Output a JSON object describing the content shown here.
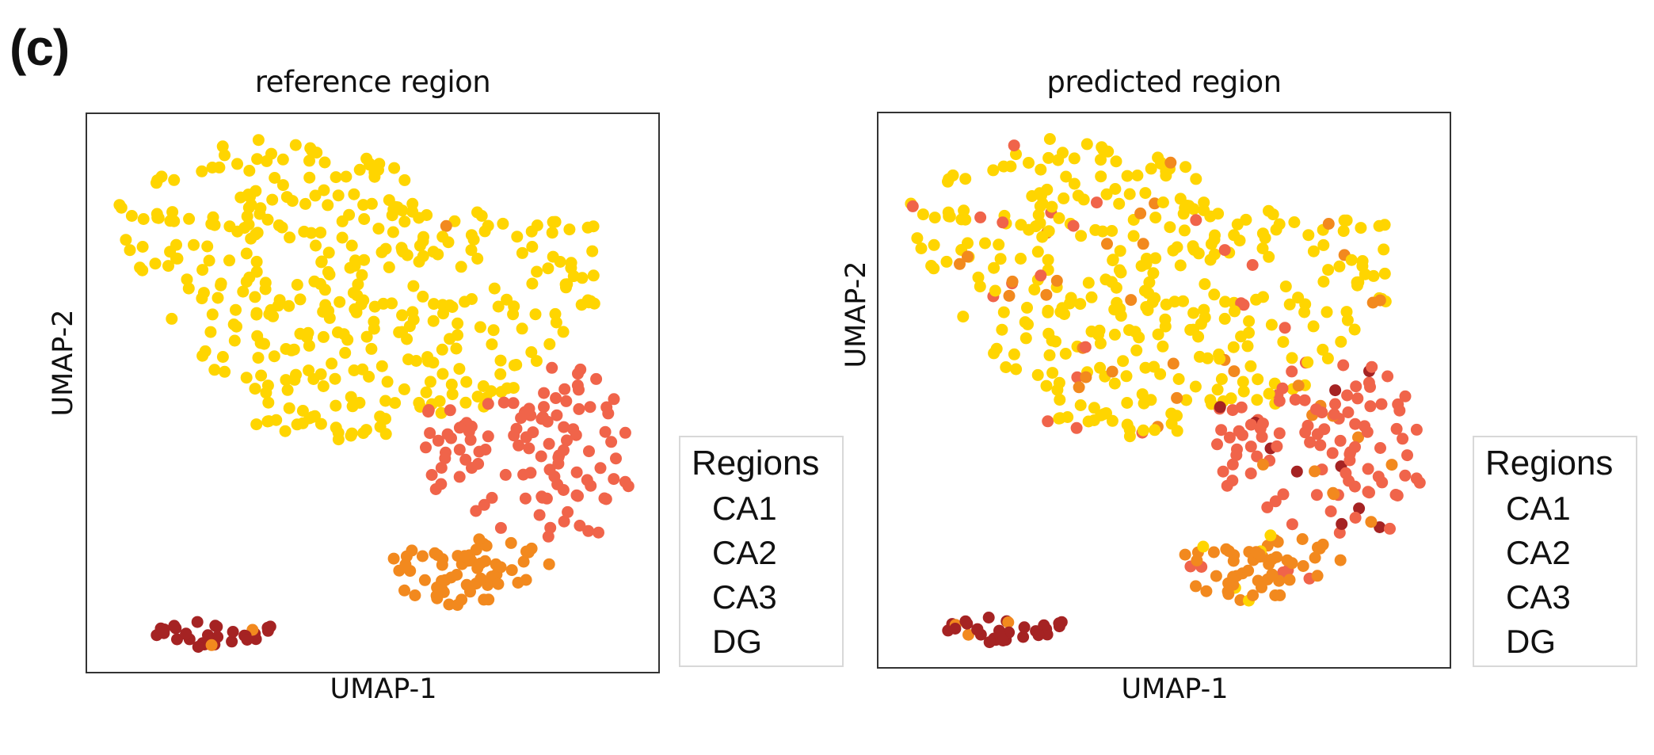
{
  "figure_label": "(c)",
  "chart_data": [
    {
      "type": "scatter",
      "title": "reference region",
      "xlabel": "UMAP-1",
      "ylabel": "UMAP-2",
      "xlim": [
        0,
        100
      ],
      "ylim": [
        0,
        100
      ],
      "grid": false,
      "ticks": false,
      "legend": {
        "title": "Regions",
        "placement": "right",
        "entries": [
          "CA1",
          "CA2",
          "CA3",
          "DG"
        ]
      },
      "colors": {
        "CA1": "#F0644A",
        "CA2": "#F2891E",
        "CA3": "#FFD500",
        "DG": "#A52323"
      },
      "clusters": [
        {
          "label": "CA3",
          "center": [
            42,
            72
          ],
          "approx_count": 700
        },
        {
          "label": "CA1",
          "center": [
            80,
            30
          ],
          "approx_count": 200
        },
        {
          "label": "CA2",
          "center": [
            66,
            17
          ],
          "approx_count": 110
        },
        {
          "label": "DG",
          "center": [
            22,
            6
          ],
          "approx_count": 60
        }
      ],
      "mislabel_rate": 0.01
    },
    {
      "type": "scatter",
      "title": "predicted region",
      "xlabel": "UMAP-1",
      "ylabel": "UMAP-2",
      "xlim": [
        0,
        100
      ],
      "ylim": [
        0,
        100
      ],
      "grid": false,
      "ticks": false,
      "legend": {
        "title": "Regions",
        "placement": "right",
        "entries": [
          "CA1",
          "CA2",
          "CA3",
          "DG"
        ]
      },
      "colors": {
        "CA1": "#F0644A",
        "CA2": "#F2891E",
        "CA3": "#FFD500",
        "DG": "#A52323"
      },
      "clusters": [
        {
          "label": "CA3",
          "center": [
            42,
            72
          ],
          "approx_count": 700
        },
        {
          "label": "CA1",
          "center": [
            80,
            30
          ],
          "approx_count": 200
        },
        {
          "label": "CA2",
          "center": [
            66,
            17
          ],
          "approx_count": 110
        },
        {
          "label": "DG",
          "center": [
            22,
            6
          ],
          "approx_count": 60
        }
      ],
      "mislabel_rate": 0.14
    }
  ]
}
